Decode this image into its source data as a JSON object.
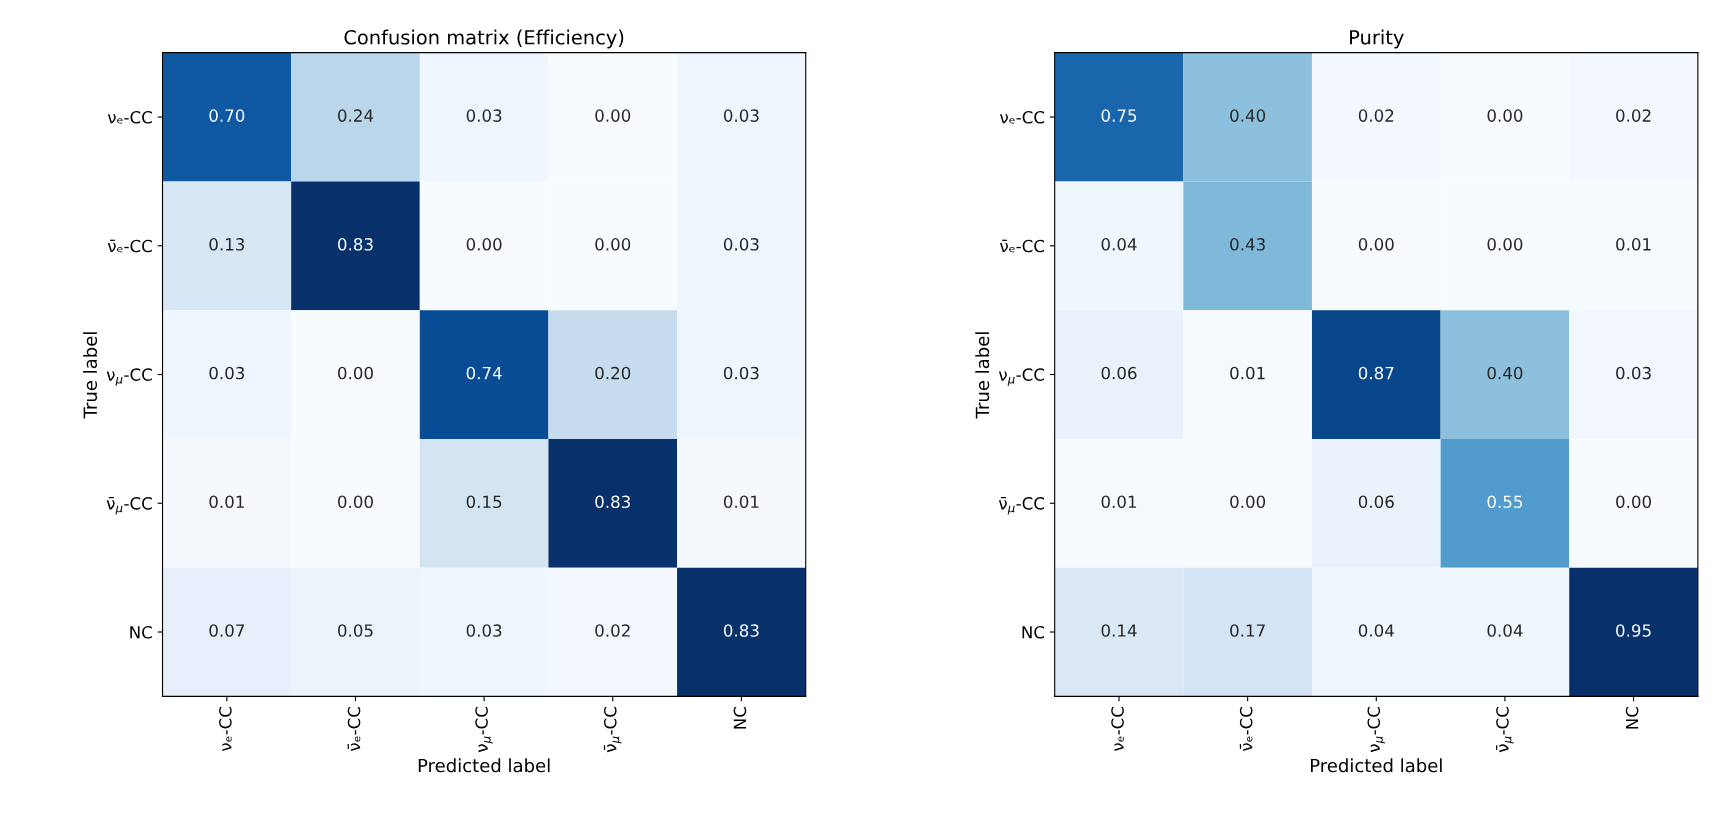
{
  "chart_data": [
    {
      "type": "heatmap",
      "title": "Confusion matrix (Efficiency)",
      "xlabel": "Predicted label",
      "ylabel": "True label",
      "data_labels": true,
      "categories": [
        "νₑ-CC",
        "ν̄ₑ-CC",
        "ν$_{μ}$-CC",
        "ν̄$_{μ}$-CC",
        "NC"
      ],
      "y_categories": [
        "νₑ-CC",
        "ν̄ₑ-CC",
        "ν$_{μ}$-CC",
        "ν̄$_{μ}$-CC",
        "NC"
      ],
      "cells": [
        [
          0.7,
          0.24,
          0.03,
          0.0,
          0.03
        ],
        [
          0.13,
          0.83,
          0.0,
          0.0,
          0.03
        ],
        [
          0.03,
          0.0,
          0.74,
          0.2,
          0.03
        ],
        [
          0.01,
          0.0,
          0.15,
          0.83,
          0.01
        ],
        [
          0.07,
          0.05,
          0.03,
          0.02,
          0.83
        ]
      ],
      "cell_labels": [
        [
          "0.70",
          "0.24",
          "0.03",
          "0.00",
          "0.03"
        ],
        [
          "0.13",
          "0.83",
          "0.00",
          "0.00",
          "0.03"
        ],
        [
          "0.03",
          "0.00",
          "0.74",
          "0.20",
          "0.03"
        ],
        [
          "0.01",
          "0.00",
          "0.15",
          "0.83",
          "0.01"
        ],
        [
          "0.07",
          "0.05",
          "0.03",
          "0.02",
          "0.83"
        ]
      ]
    },
    {
      "type": "heatmap",
      "title": "Purity",
      "xlabel": "Predicted label",
      "ylabel": "True label",
      "data_labels": true,
      "categories": [
        "νₑ-CC",
        "ν̄ₑ-CC",
        "ν$_{μ}$-CC",
        "ν̄$_{μ}$-CC",
        "NC"
      ],
      "y_categories": [
        "νₑ-CC",
        "ν̄ₑ-CC",
        "ν$_{μ}$-CC",
        "ν̄$_{μ}$-CC",
        "NC"
      ],
      "cells": [
        [
          0.75,
          0.4,
          0.02,
          0.0,
          0.02
        ],
        [
          0.04,
          0.43,
          0.0,
          0.0,
          0.01
        ],
        [
          0.06,
          0.01,
          0.87,
          0.4,
          0.03
        ],
        [
          0.01,
          0.0,
          0.06,
          0.55,
          0.0
        ],
        [
          0.14,
          0.17,
          0.04,
          0.04,
          0.95
        ]
      ],
      "cell_labels": [
        [
          "0.75",
          "0.40",
          "0.02",
          "0.00",
          "0.02"
        ],
        [
          "0.04",
          "0.43",
          "0.00",
          "0.00",
          "0.01"
        ],
        [
          "0.06",
          "0.01",
          "0.87",
          "0.40",
          "0.03"
        ],
        [
          "0.01",
          "0.00",
          "0.06",
          "0.55",
          "0.00"
        ],
        [
          "0.14",
          "0.17",
          "0.04",
          "0.04",
          "0.95"
        ]
      ]
    }
  ]
}
